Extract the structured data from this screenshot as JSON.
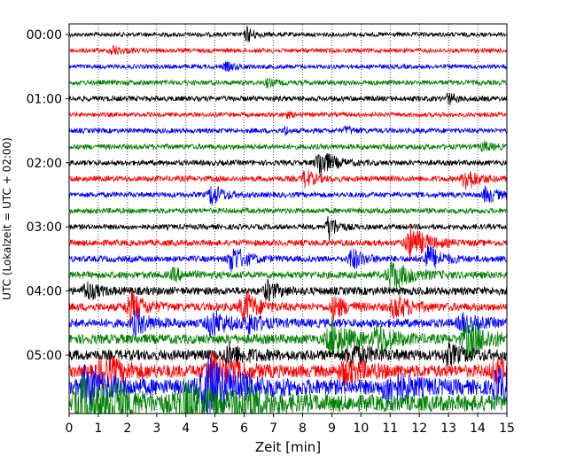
{
  "chart_data": {
    "type": "line",
    "title": "",
    "xlabel": "Zeit  [min]",
    "ylabel": "UTC (Lokalzeit = UTC + 02:00)",
    "xlim": [
      0,
      15
    ],
    "x_ticks": [
      0,
      1,
      2,
      3,
      4,
      5,
      6,
      7,
      8,
      9,
      10,
      11,
      12,
      13,
      14,
      15
    ],
    "row_interval_minutes": 15,
    "row_count": 24,
    "y_time_labels": [
      {
        "row": 0,
        "label": "00:00"
      },
      {
        "row": 4,
        "label": "01:00"
      },
      {
        "row": 8,
        "label": "02:00"
      },
      {
        "row": 12,
        "label": "03:00"
      },
      {
        "row": 16,
        "label": "04:00"
      },
      {
        "row": 20,
        "label": "05:00"
      }
    ],
    "grid": {
      "vertical": true,
      "style": "dotted"
    },
    "colors": [
      "#000000",
      "#ff0000",
      "#0000ff",
      "#008000"
    ],
    "legend": "none",
    "traces": [
      {
        "row": 0,
        "color": "#000000",
        "noise": 0.25,
        "events": [
          {
            "t": 6.1,
            "amp": 0.9,
            "w": 0.18
          }
        ]
      },
      {
        "row": 1,
        "color": "#ff0000",
        "noise": 0.25,
        "events": [
          {
            "t": 1.5,
            "amp": 0.5,
            "w": 0.3
          }
        ]
      },
      {
        "row": 2,
        "color": "#0000ff",
        "noise": 0.25,
        "events": [
          {
            "t": 5.4,
            "amp": 0.4,
            "w": 0.3
          }
        ]
      },
      {
        "row": 3,
        "color": "#008000",
        "noise": 0.28,
        "events": [
          {
            "t": 6.8,
            "amp": 0.4,
            "w": 0.2
          }
        ]
      },
      {
        "row": 4,
        "color": "#000000",
        "noise": 0.3,
        "events": [
          {
            "t": 13.0,
            "amp": 0.6,
            "w": 0.2
          }
        ]
      },
      {
        "row": 5,
        "color": "#ff0000",
        "noise": 0.25,
        "events": [
          {
            "t": 7.4,
            "amp": 0.3,
            "w": 0.2
          }
        ]
      },
      {
        "row": 6,
        "color": "#0000ff",
        "noise": 0.28,
        "events": [
          {
            "t": 7.4,
            "amp": 0.8,
            "w": 0.06
          },
          {
            "t": 9.5,
            "amp": 0.4,
            "w": 0.2
          }
        ]
      },
      {
        "row": 7,
        "color": "#008000",
        "noise": 0.3,
        "events": [
          {
            "t": 14.2,
            "amp": 0.5,
            "w": 0.25
          }
        ]
      },
      {
        "row": 8,
        "color": "#000000",
        "noise": 0.3,
        "events": [
          {
            "t": 8.6,
            "amp": 1.6,
            "w": 0.35
          }
        ]
      },
      {
        "row": 9,
        "color": "#ff0000",
        "noise": 0.32,
        "events": [
          {
            "t": 8.1,
            "amp": 1.0,
            "w": 0.25
          },
          {
            "t": 13.6,
            "amp": 1.4,
            "w": 0.3
          }
        ]
      },
      {
        "row": 10,
        "color": "#0000ff",
        "noise": 0.3,
        "events": [
          {
            "t": 4.9,
            "amp": 1.2,
            "w": 0.3
          },
          {
            "t": 14.3,
            "amp": 0.9,
            "w": 0.3
          }
        ]
      },
      {
        "row": 11,
        "color": "#008000",
        "noise": 0.3,
        "events": []
      },
      {
        "row": 12,
        "color": "#000000",
        "noise": 0.3,
        "events": [
          {
            "t": 8.9,
            "amp": 1.5,
            "w": 0.22
          }
        ]
      },
      {
        "row": 13,
        "color": "#ff0000",
        "noise": 0.35,
        "events": [
          {
            "t": 11.7,
            "amp": 2.0,
            "w": 0.4
          }
        ]
      },
      {
        "row": 14,
        "color": "#0000ff",
        "noise": 0.35,
        "events": [
          {
            "t": 5.6,
            "amp": 1.5,
            "w": 0.35
          },
          {
            "t": 9.7,
            "amp": 1.2,
            "w": 0.3
          },
          {
            "t": 12.3,
            "amp": 1.5,
            "w": 0.35
          }
        ]
      },
      {
        "row": 15,
        "color": "#008000",
        "noise": 0.4,
        "events": [
          {
            "t": 11.1,
            "amp": 1.5,
            "w": 0.5
          },
          {
            "t": 3.6,
            "amp": 0.6,
            "w": 0.3
          }
        ]
      },
      {
        "row": 16,
        "color": "#000000",
        "noise": 0.45,
        "events": [
          {
            "t": 0.6,
            "amp": 1.0,
            "w": 0.3
          },
          {
            "t": 6.8,
            "amp": 1.0,
            "w": 0.3
          }
        ]
      },
      {
        "row": 17,
        "color": "#ff0000",
        "noise": 0.45,
        "events": [
          {
            "t": 2.1,
            "amp": 1.8,
            "w": 0.35
          },
          {
            "t": 6.0,
            "amp": 1.8,
            "w": 0.35
          },
          {
            "t": 9.1,
            "amp": 1.3,
            "w": 0.3
          },
          {
            "t": 11.2,
            "amp": 1.3,
            "w": 0.4
          }
        ]
      },
      {
        "row": 18,
        "color": "#0000ff",
        "noise": 0.5,
        "events": [
          {
            "t": 2.3,
            "amp": 1.2,
            "w": 0.35
          },
          {
            "t": 4.9,
            "amp": 1.5,
            "w": 0.4
          },
          {
            "t": 6.2,
            "amp": 1.0,
            "w": 0.3
          },
          {
            "t": 13.5,
            "amp": 1.0,
            "w": 0.4
          }
        ]
      },
      {
        "row": 19,
        "color": "#008000",
        "noise": 0.55,
        "events": [
          {
            "t": 9.0,
            "amp": 2.0,
            "w": 0.45
          },
          {
            "t": 10.6,
            "amp": 1.6,
            "w": 0.4
          },
          {
            "t": 13.7,
            "amp": 2.0,
            "w": 0.5
          }
        ]
      },
      {
        "row": 20,
        "color": "#000000",
        "noise": 0.6,
        "events": [
          {
            "t": 5.5,
            "amp": 1.0,
            "w": 0.5
          },
          {
            "t": 9.7,
            "amp": 1.2,
            "w": 0.5
          },
          {
            "t": 13.0,
            "amp": 0.9,
            "w": 0.5
          }
        ]
      },
      {
        "row": 21,
        "color": "#ff0000",
        "noise": 0.7,
        "events": [
          {
            "t": 1.2,
            "amp": 1.5,
            "w": 0.6
          },
          {
            "t": 4.9,
            "amp": 1.8,
            "w": 0.6
          },
          {
            "t": 9.5,
            "amp": 1.2,
            "w": 0.6
          },
          {
            "t": 14.6,
            "amp": 1.0,
            "w": 0.4
          }
        ]
      },
      {
        "row": 22,
        "color": "#0000ff",
        "noise": 0.85,
        "events": [
          {
            "t": 0.6,
            "amp": 2.0,
            "w": 0.6
          },
          {
            "t": 4.8,
            "amp": 3.0,
            "w": 0.8
          },
          {
            "t": 11.0,
            "amp": 1.5,
            "w": 0.6
          },
          {
            "t": 14.7,
            "amp": 1.8,
            "w": 0.4
          }
        ]
      },
      {
        "row": 23,
        "color": "#008000",
        "noise": 0.95,
        "events": [
          {
            "t": 0.4,
            "amp": 3.0,
            "w": 0.5
          },
          {
            "t": 1.4,
            "amp": 2.2,
            "w": 0.6
          },
          {
            "t": 4.0,
            "amp": 2.0,
            "w": 0.8
          },
          {
            "t": 6.0,
            "amp": 1.5,
            "w": 0.6
          }
        ]
      }
    ]
  }
}
